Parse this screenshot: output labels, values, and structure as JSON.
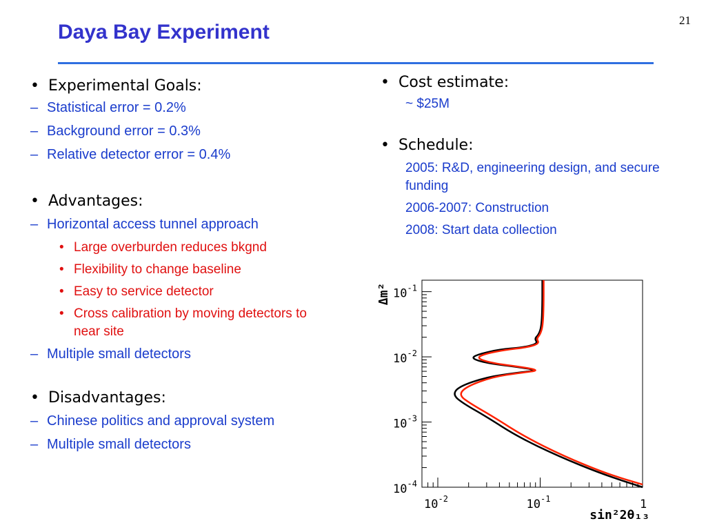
{
  "slide_number": "21",
  "title": "Daya Bay Experiment",
  "left": {
    "goals_heading": "Experimental Goals:",
    "goals": [
      "Statistical error = 0.2%",
      "Background error = 0.3%",
      "Relative detector error = 0.4%"
    ],
    "advantages_heading": "Advantages:",
    "adv_1": "Horizontal access tunnel approach",
    "adv_1_subs": [
      "Large overburden reduces bkgnd",
      "Flexibility to change baseline",
      "Easy to service detector",
      "Cross calibration by moving detectors to near site"
    ],
    "adv_2": "Multiple small detectors",
    "disadvantages_heading": "Disadvantages:",
    "disadvantages": [
      "Chinese politics and approval system",
      "Multiple small detectors"
    ]
  },
  "right": {
    "cost_heading": "Cost estimate:",
    "cost_value": "~ $25M",
    "schedule_heading": "Schedule:",
    "schedule": [
      "2005: R&D, engineering design, and secure funding",
      "2006-2007: Construction",
      "2008: Start data collection"
    ]
  },
  "chart_data": {
    "type": "line",
    "xlabel": "sin²2θ₁₃",
    "ylabel": "Δm²",
    "x_scale": "log",
    "y_scale": "log",
    "xlim": [
      0.007,
      1
    ],
    "ylim": [
      0.0001,
      0.15
    ],
    "x_ticks": [
      {
        "v": 0.01,
        "base": "10",
        "exp": "-2"
      },
      {
        "v": 0.1,
        "base": "10",
        "exp": "-1"
      },
      {
        "v": 1,
        "base": "1",
        "exp": ""
      }
    ],
    "y_ticks": [
      {
        "v": 0.1,
        "base": "10",
        "exp": "-1"
      },
      {
        "v": 0.01,
        "base": "10",
        "exp": "-2"
      },
      {
        "v": 0.001,
        "base": "10",
        "exp": "-3"
      },
      {
        "v": 0.0001,
        "base": "10",
        "exp": "-4"
      }
    ],
    "grid": false,
    "series": [
      {
        "color": "#000000",
        "points": [
          [
            0.105,
            0.15
          ],
          [
            0.105,
            0.06
          ],
          [
            0.103,
            0.03
          ],
          [
            0.097,
            0.022
          ],
          [
            0.088,
            0.019
          ],
          [
            0.095,
            0.016
          ],
          [
            0.07,
            0.014
          ],
          [
            0.04,
            0.013
          ],
          [
            0.025,
            0.011
          ],
          [
            0.021,
            0.0095
          ],
          [
            0.03,
            0.008
          ],
          [
            0.06,
            0.007
          ],
          [
            0.095,
            0.0062
          ],
          [
            0.06,
            0.0057
          ],
          [
            0.03,
            0.0049
          ],
          [
            0.016,
            0.0035
          ],
          [
            0.014,
            0.0026
          ],
          [
            0.018,
            0.0019
          ],
          [
            0.03,
            0.0012
          ],
          [
            0.06,
            0.0006
          ],
          [
            0.15,
            0.0003
          ],
          [
            0.4,
            0.00016
          ],
          [
            1,
            0.0001
          ]
        ]
      },
      {
        "color": "#ff2200",
        "points": [
          [
            0.108,
            0.15
          ],
          [
            0.108,
            0.06
          ],
          [
            0.106,
            0.03
          ],
          [
            0.1,
            0.022
          ],
          [
            0.092,
            0.019
          ],
          [
            0.098,
            0.016
          ],
          [
            0.075,
            0.014
          ],
          [
            0.045,
            0.0128
          ],
          [
            0.028,
            0.011
          ],
          [
            0.024,
            0.0095
          ],
          [
            0.034,
            0.008
          ],
          [
            0.065,
            0.007
          ],
          [
            0.1,
            0.0062
          ],
          [
            0.065,
            0.0057
          ],
          [
            0.034,
            0.0049
          ],
          [
            0.019,
            0.0035
          ],
          [
            0.016,
            0.0026
          ],
          [
            0.021,
            0.0019
          ],
          [
            0.035,
            0.0012
          ],
          [
            0.07,
            0.0006
          ],
          [
            0.17,
            0.0003
          ],
          [
            0.45,
            0.00016
          ],
          [
            1,
            0.00011
          ]
        ]
      }
    ]
  }
}
